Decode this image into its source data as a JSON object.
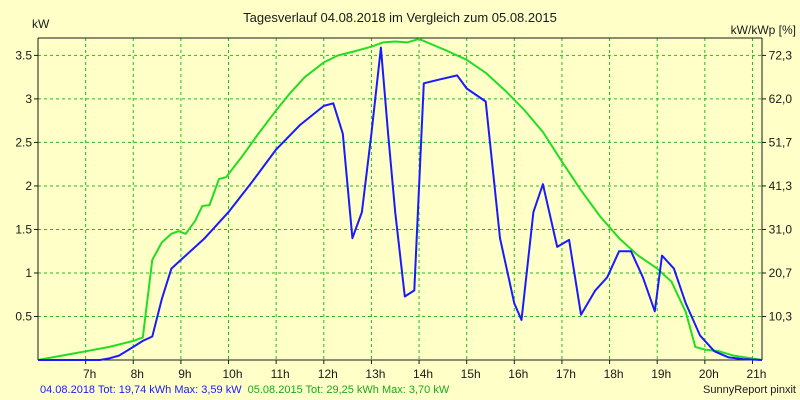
{
  "chart_data": {
    "type": "line",
    "title": "Tagesverlauf 04.08.2018 im Vergleich zum 05.08.2015",
    "ylabel_left": "kW",
    "ylabel_right": "kW/kWp [%]",
    "xlim": [
      6.0,
      21.2
    ],
    "ylim": [
      0,
      3.7
    ],
    "x_ticks": [
      {
        "x": 7,
        "label": "7h"
      },
      {
        "x": 8,
        "label": "8h"
      },
      {
        "x": 9,
        "label": "9h"
      },
      {
        "x": 10,
        "label": "10h"
      },
      {
        "x": 11,
        "label": "11h"
      },
      {
        "x": 12,
        "label": "12h"
      },
      {
        "x": 13,
        "label": "13h"
      },
      {
        "x": 14,
        "label": "14h"
      },
      {
        "x": 15,
        "label": "15h"
      },
      {
        "x": 16,
        "label": "16h"
      },
      {
        "x": 17,
        "label": "17h"
      },
      {
        "x": 18,
        "label": "18h"
      },
      {
        "x": 19,
        "label": "19h"
      },
      {
        "x": 20,
        "label": "20h"
      },
      {
        "x": 21,
        "label": "21h"
      }
    ],
    "y_ticks_left": [
      {
        "y": 0.5,
        "label": "0.5"
      },
      {
        "y": 1.0,
        "label": "1"
      },
      {
        "y": 1.5,
        "label": "1.5"
      },
      {
        "y": 2.0,
        "label": "2"
      },
      {
        "y": 2.5,
        "label": "2.5"
      },
      {
        "y": 3.0,
        "label": "3"
      },
      {
        "y": 3.5,
        "label": "3.5"
      }
    ],
    "y_ticks_right": [
      {
        "y": 0.5,
        "label": "10,3"
      },
      {
        "y": 1.0,
        "label": "20,7"
      },
      {
        "y": 1.5,
        "label": "31,0"
      },
      {
        "y": 2.0,
        "label": "41,3"
      },
      {
        "y": 2.5,
        "label": "51,7"
      },
      {
        "y": 3.0,
        "label": "62,0"
      },
      {
        "y": 3.5,
        "label": "72,3"
      }
    ],
    "grid": true,
    "series": [
      {
        "name": "04.08.2018",
        "color": "#1a1aff",
        "x": [
          6.0,
          7.3,
          7.5,
          7.7,
          8.0,
          8.2,
          8.4,
          8.6,
          8.8,
          9.0,
          9.5,
          10.0,
          10.5,
          11.0,
          11.5,
          12.0,
          12.2,
          12.4,
          12.6,
          12.8,
          13.0,
          13.2,
          13.35,
          13.5,
          13.7,
          13.9,
          14.1,
          14.4,
          14.8,
          15.0,
          15.4,
          15.7,
          16.0,
          16.15,
          16.4,
          16.6,
          16.9,
          17.15,
          17.4,
          17.7,
          17.95,
          18.2,
          18.45,
          18.7,
          18.95,
          19.1,
          19.35,
          19.6,
          19.9,
          20.2,
          20.5,
          20.8,
          21.2
        ],
        "y": [
          0.0,
          0.0,
          0.02,
          0.05,
          0.15,
          0.22,
          0.27,
          0.7,
          1.05,
          1.15,
          1.4,
          1.7,
          2.05,
          2.42,
          2.7,
          2.92,
          2.95,
          2.6,
          1.4,
          1.7,
          2.6,
          3.59,
          2.6,
          1.7,
          0.73,
          0.8,
          3.18,
          3.22,
          3.27,
          3.12,
          2.97,
          1.4,
          0.65,
          0.46,
          1.7,
          2.02,
          1.3,
          1.38,
          0.52,
          0.8,
          0.95,
          1.25,
          1.25,
          0.95,
          0.56,
          1.2,
          1.05,
          0.65,
          0.28,
          0.1,
          0.03,
          0.01,
          0.0
        ]
      },
      {
        "name": "05.08.2015",
        "color": "#22dd22",
        "x": [
          6.0,
          6.5,
          7.0,
          7.5,
          8.0,
          8.2,
          8.4,
          8.6,
          8.8,
          8.95,
          9.1,
          9.3,
          9.45,
          9.6,
          9.8,
          9.95,
          10.3,
          10.6,
          11.0,
          11.3,
          11.6,
          12.0,
          12.3,
          12.6,
          13.0,
          13.25,
          13.5,
          13.75,
          14.0,
          14.3,
          14.6,
          15.0,
          15.4,
          15.8,
          16.2,
          16.6,
          17.0,
          17.4,
          17.8,
          18.2,
          18.6,
          19.0,
          19.3,
          19.6,
          19.8,
          20.0,
          20.3,
          20.6,
          21.2
        ],
        "y": [
          0.0,
          0.05,
          0.1,
          0.15,
          0.22,
          0.26,
          1.15,
          1.35,
          1.45,
          1.48,
          1.45,
          1.6,
          1.77,
          1.78,
          2.08,
          2.1,
          2.35,
          2.58,
          2.87,
          3.07,
          3.25,
          3.42,
          3.5,
          3.54,
          3.6,
          3.65,
          3.66,
          3.65,
          3.69,
          3.62,
          3.55,
          3.45,
          3.3,
          3.1,
          2.88,
          2.62,
          2.28,
          1.95,
          1.65,
          1.4,
          1.2,
          1.05,
          0.9,
          0.55,
          0.15,
          0.12,
          0.1,
          0.05,
          0.0
        ]
      }
    ]
  },
  "footer": {
    "series1_text": "04.08.2018 Tot: 19,74 kWh Max: 3,59 kW",
    "series2_text": "05.08.2015 Tot: 29,25 kWh Max: 3,70 kW",
    "credit": "SunnyReport pinxit"
  }
}
